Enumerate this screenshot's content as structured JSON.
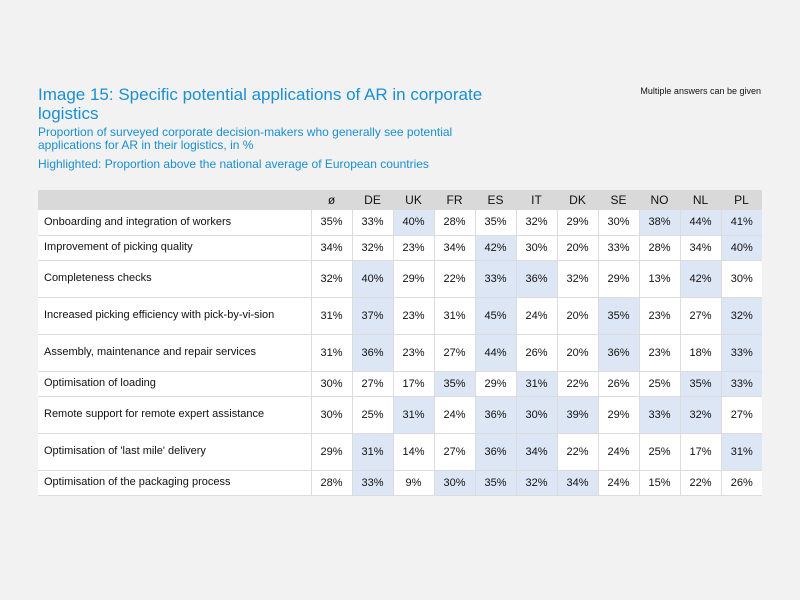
{
  "title": "Image 15: Specific potential applications of AR in corporate logistics",
  "subtitle": "Proportion of surveyed corporate decision-makers who generally see potential applications for AR in their logistics, in %",
  "highlight_note": "Highlighted: Proportion above the national average of European countries",
  "multiple_answers_note": "Multiple answers can be given",
  "highlight_color": "#dde6f5",
  "columns": [
    "ø",
    "DE",
    "UK",
    "FR",
    "ES",
    "IT",
    "DK",
    "SE",
    "NO",
    "NL",
    "PL"
  ],
  "rows": [
    {
      "label": "Onboarding and integration of workers",
      "values": [
        "35%",
        "33%",
        "40%",
        "28%",
        "35%",
        "32%",
        "29%",
        "30%",
        "38%",
        "44%",
        "41%"
      ],
      "highlighted": [
        false,
        false,
        true,
        false,
        false,
        false,
        false,
        false,
        true,
        true,
        true
      ]
    },
    {
      "label": "Improvement of picking quality",
      "values": [
        "34%",
        "32%",
        "23%",
        "34%",
        "42%",
        "30%",
        "20%",
        "33%",
        "28%",
        "34%",
        "40%"
      ],
      "highlighted": [
        false,
        false,
        false,
        false,
        true,
        false,
        false,
        false,
        false,
        false,
        true
      ]
    },
    {
      "label": "Completeness checks",
      "values": [
        "32%",
        "40%",
        "29%",
        "22%",
        "33%",
        "36%",
        "32%",
        "29%",
        "13%",
        "42%",
        "30%"
      ],
      "highlighted": [
        false,
        true,
        false,
        false,
        true,
        true,
        false,
        false,
        false,
        true,
        false
      ]
    },
    {
      "label": "Increased picking efficiency with pick-by-vi-sion",
      "values": [
        "31%",
        "37%",
        "23%",
        "31%",
        "45%",
        "24%",
        "20%",
        "35%",
        "23%",
        "27%",
        "32%"
      ],
      "highlighted": [
        false,
        true,
        false,
        false,
        true,
        false,
        false,
        true,
        false,
        false,
        true
      ]
    },
    {
      "label": "Assembly, maintenance and repair services",
      "values": [
        "31%",
        "36%",
        "23%",
        "27%",
        "44%",
        "26%",
        "20%",
        "36%",
        "23%",
        "18%",
        "33%"
      ],
      "highlighted": [
        false,
        true,
        false,
        false,
        true,
        false,
        false,
        true,
        false,
        false,
        true
      ]
    },
    {
      "label": "Optimisation of loading",
      "values": [
        "30%",
        "27%",
        "17%",
        "35%",
        "29%",
        "31%",
        "22%",
        "26%",
        "25%",
        "35%",
        "33%"
      ],
      "highlighted": [
        false,
        false,
        false,
        true,
        false,
        true,
        false,
        false,
        false,
        true,
        true
      ]
    },
    {
      "label": "Remote support for remote expert assistance",
      "values": [
        "30%",
        "25%",
        "31%",
        "24%",
        "36%",
        "30%",
        "39%",
        "29%",
        "33%",
        "32%",
        "27%"
      ],
      "highlighted": [
        false,
        false,
        true,
        false,
        true,
        true,
        true,
        false,
        true,
        true,
        false
      ]
    },
    {
      "label": "Optimisation of 'last mile' delivery",
      "values": [
        "29%",
        "31%",
        "14%",
        "27%",
        "36%",
        "34%",
        "22%",
        "24%",
        "25%",
        "17%",
        "31%"
      ],
      "highlighted": [
        false,
        true,
        false,
        false,
        true,
        true,
        false,
        false,
        false,
        false,
        true
      ]
    },
    {
      "label": "Optimisation of the packaging process",
      "values": [
        "28%",
        "33%",
        "9%",
        "30%",
        "35%",
        "32%",
        "34%",
        "24%",
        "15%",
        "22%",
        "26%"
      ],
      "highlighted": [
        false,
        true,
        false,
        true,
        true,
        true,
        true,
        false,
        false,
        false,
        false
      ]
    }
  ]
}
